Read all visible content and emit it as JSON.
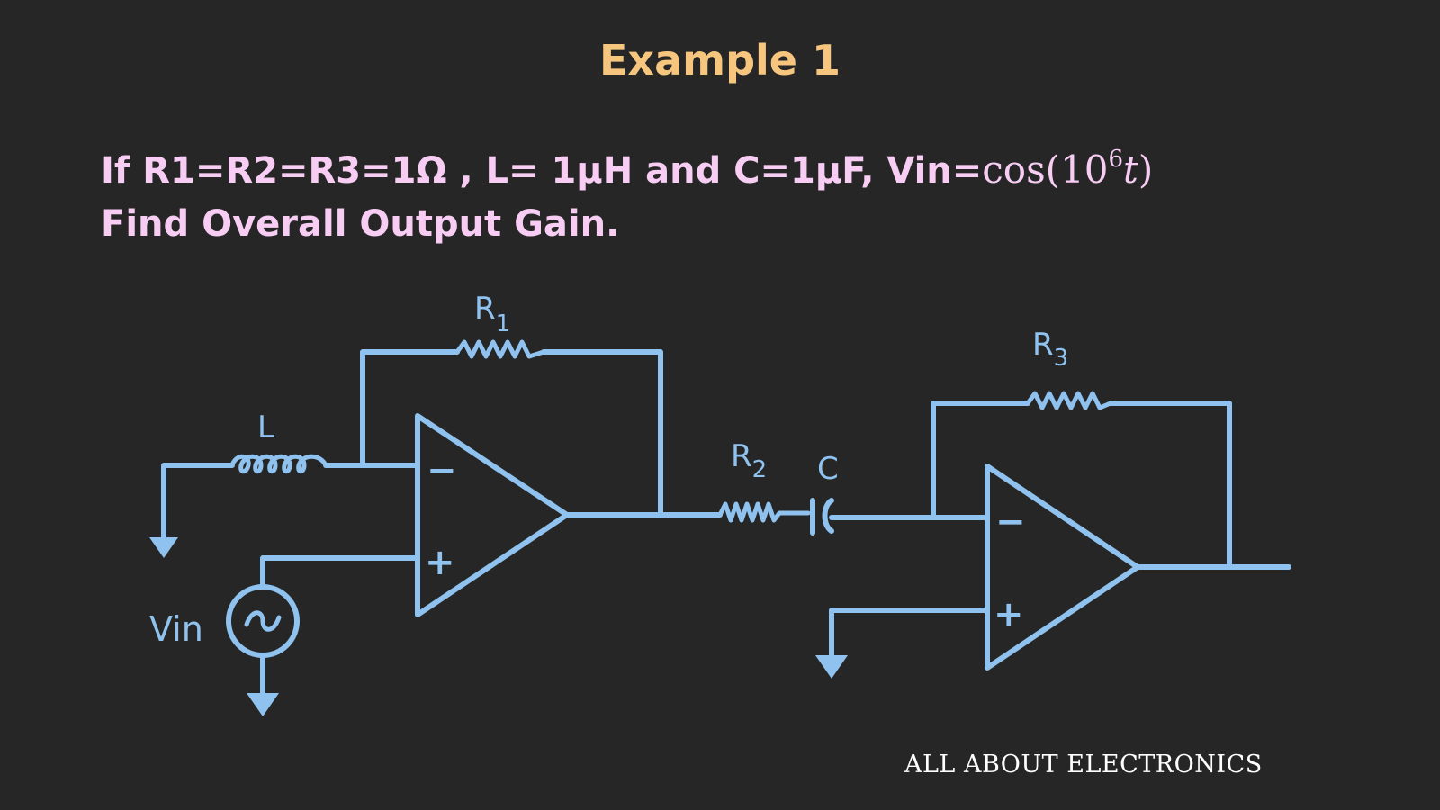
{
  "slide": {
    "title": "Example 1",
    "problem_line1_text": "If R1=R2=R3=1Ω , L= 1µH and C=1µF,  Vin=",
    "problem_line1_math_func": "cos(10",
    "problem_line1_math_exp": "6",
    "problem_line1_math_var": "t",
    "problem_line1_math_close": ")",
    "problem_line2": "Find Overall Output Gain.",
    "watermark": "ALL ABOUT ELECTRONICS"
  },
  "circuit": {
    "labels": {
      "r1_letter": "R",
      "r1_sub": "1",
      "r2_letter": "R",
      "r2_sub": "2",
      "r3_letter": "R",
      "r3_sub": "3",
      "inductor": "L",
      "capacitor": "C",
      "source": "Vin",
      "source_symbol": "~",
      "inverting_1": "−",
      "noninverting_1": "+",
      "inverting_2": "−",
      "noninverting_2": "+"
    },
    "wire_color": "#8fc2ee"
  }
}
